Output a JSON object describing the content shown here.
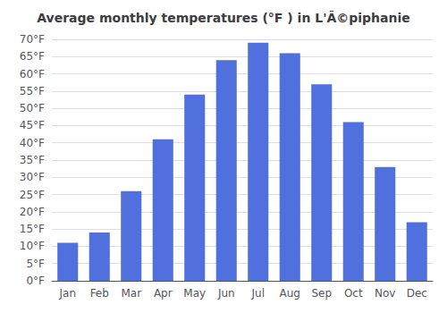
{
  "chart_data": {
    "type": "bar",
    "title": "Average monthly temperatures (°F ) in L'Ã©piphanie",
    "categories": [
      "Jan",
      "Feb",
      "Mar",
      "Apr",
      "May",
      "Jun",
      "Jul",
      "Aug",
      "Sep",
      "Oct",
      "Nov",
      "Dec"
    ],
    "values": [
      11,
      14,
      26,
      41,
      54,
      64,
      69,
      66,
      57,
      46,
      33,
      17
    ],
    "ylim": [
      0,
      70
    ],
    "yticks": [
      {
        "value": 0,
        "label": "0°F"
      },
      {
        "value": 5,
        "label": "5°F"
      },
      {
        "value": 10,
        "label": "10°F"
      },
      {
        "value": 15,
        "label": "15°F"
      },
      {
        "value": 20,
        "label": "20°F"
      },
      {
        "value": 25,
        "label": "25°F"
      },
      {
        "value": 30,
        "label": "30°F"
      },
      {
        "value": 35,
        "label": "35°F"
      },
      {
        "value": 40,
        "label": "40°F"
      },
      {
        "value": 45,
        "label": "45°F"
      },
      {
        "value": 50,
        "label": "50°F"
      },
      {
        "value": 55,
        "label": "55°F"
      },
      {
        "value": 60,
        "label": "60°F"
      },
      {
        "value": 65,
        "label": "65°F"
      },
      {
        "value": 70,
        "label": "70°F"
      }
    ],
    "grid": true
  }
}
